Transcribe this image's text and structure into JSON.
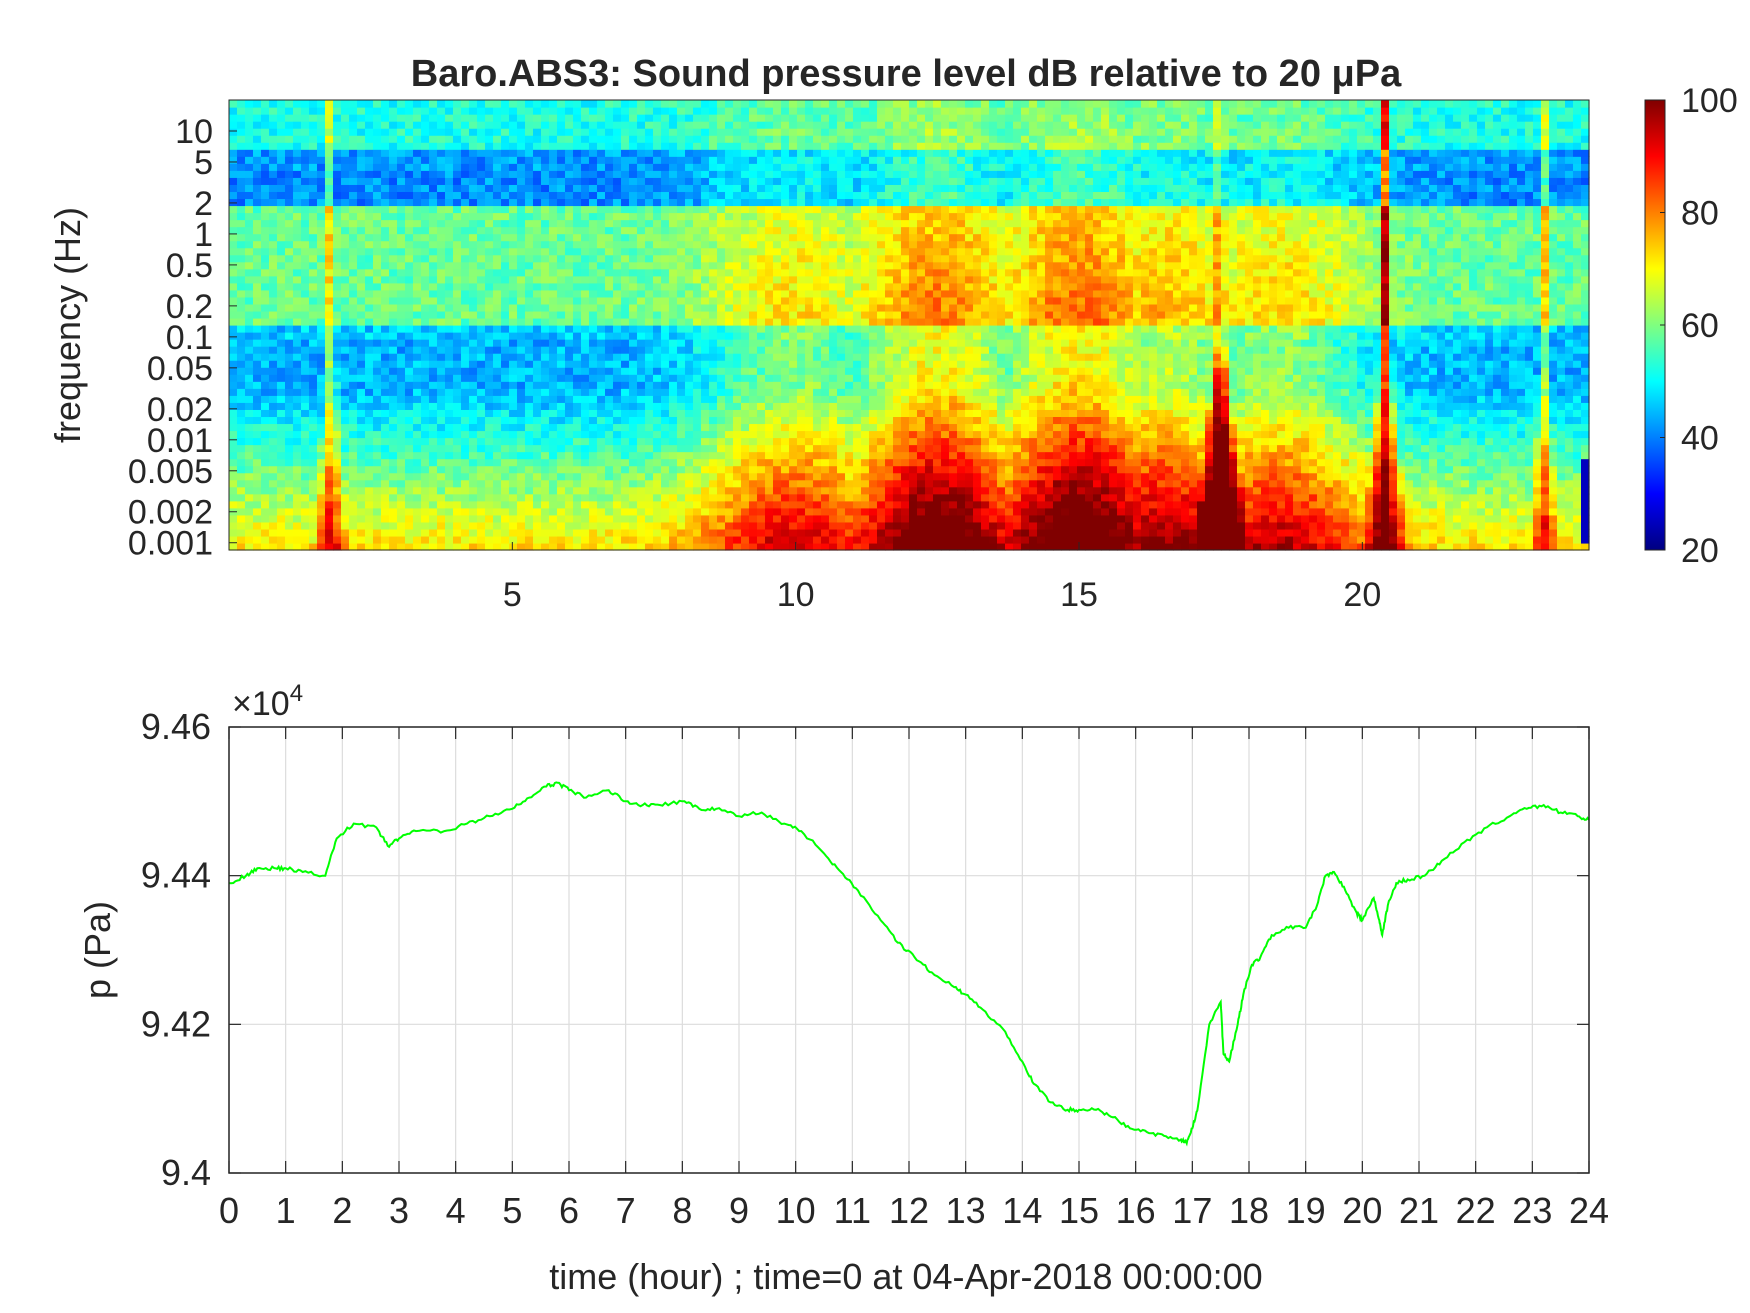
{
  "chart_data": [
    {
      "type": "heatmap",
      "title": "Baro.ABS3: Sound pressure level dB relative to 20 μPa",
      "ylabel": "frequency (Hz)",
      "xlabel": "",
      "xlim": [
        0,
        24
      ],
      "x_ticks": [
        5,
        10,
        15,
        20
      ],
      "x_tick_labels": [
        "5",
        "10",
        "15",
        "20"
      ],
      "ylim": [
        0.00085,
        20
      ],
      "yscale": "log",
      "y_ticks": [
        0.001,
        0.002,
        0.005,
        0.01,
        0.02,
        0.05,
        0.1,
        0.2,
        0.5,
        1,
        2,
        5,
        10
      ],
      "y_tick_labels": [
        "0.001",
        "0.002",
        "0.005",
        "0.01",
        "0.02",
        "0.05",
        "0.1",
        "0.2",
        "0.5",
        "1",
        "2",
        "5",
        "10"
      ],
      "colormap": "jet",
      "colorbar": {
        "range": [
          20,
          100
        ],
        "ticks": [
          20,
          40,
          60,
          80,
          100
        ],
        "tick_labels": [
          "20",
          "40",
          "60",
          "80",
          "100"
        ]
      },
      "events": [
        {
          "time": 1.8,
          "strength": 0.55,
          "note": "narrow transient"
        },
        {
          "time": 17.5,
          "strength": 1.0,
          "note": "strong broadband spike"
        },
        {
          "time": 20.4,
          "strength": 0.8,
          "note": "broadband spike"
        },
        {
          "time": 23.2,
          "strength": 0.5,
          "note": "narrow transient"
        }
      ],
      "broadband_activity": [
        [
          10,
          0.55
        ],
        [
          12.5,
          0.9
        ],
        [
          15,
          0.95
        ],
        [
          16.5,
          0.7
        ],
        [
          18.5,
          0.6
        ]
      ]
    },
    {
      "type": "line",
      "title": "",
      "xlabel": "time (hour) ; time=0 at 04-Apr-2018 00:00:00",
      "ylabel": "p (Pa)",
      "xlim": [
        0,
        24
      ],
      "x_ticks": [
        0,
        1,
        2,
        3,
        4,
        5,
        6,
        7,
        8,
        9,
        10,
        11,
        12,
        13,
        14,
        15,
        16,
        17,
        18,
        19,
        20,
        21,
        22,
        23,
        24
      ],
      "x_tick_labels": [
        "0",
        "1",
        "2",
        "3",
        "4",
        "5",
        "6",
        "7",
        "8",
        "9",
        "10",
        "11",
        "12",
        "13",
        "14",
        "15",
        "16",
        "17",
        "18",
        "19",
        "20",
        "21",
        "22",
        "23",
        "24"
      ],
      "ylim": [
        94000,
        94600
      ],
      "y_ticks": [
        94000,
        94200,
        94400,
        94600
      ],
      "y_tick_labels": [
        "9.4",
        "9.42",
        "9.44",
        "9.46"
      ],
      "exponent_label": "×10",
      "exponent_power": "4",
      "grid": true,
      "color": "#00ff00",
      "series": [
        {
          "x": [
            0,
            0.3,
            0.5,
            0.8,
            1.0,
            1.3,
            1.7,
            1.9,
            2.2,
            2.6,
            2.8,
            3.0,
            3.3,
            3.8,
            4.2,
            4.6,
            5.0,
            5.3,
            5.6,
            5.8,
            6.0,
            6.3,
            6.7,
            7.0,
            7.3,
            7.6,
            8.0,
            8.3,
            8.6,
            9.0,
            9.4,
            9.8,
            10.1,
            10.5,
            10.8,
            11.1,
            11.5,
            11.8,
            12.1,
            12.4,
            12.8,
            13.0,
            13.3,
            13.7,
            14.0,
            14.2,
            14.5,
            14.8,
            15.0,
            15.3,
            15.6,
            15.9,
            16.2,
            16.5,
            16.8,
            16.9,
            17.0,
            17.1,
            17.3,
            17.5,
            17.55,
            17.65,
            17.8,
            17.9,
            18.05,
            18.2,
            18.4,
            18.7,
            19.0,
            19.2,
            19.35,
            19.5,
            19.7,
            19.9,
            20.0,
            20.2,
            20.3,
            20.35,
            20.45,
            20.6,
            20.8,
            21.1,
            21.4,
            21.8,
            22.2,
            22.6,
            22.9,
            23.2,
            23.5,
            23.8,
            24.0
          ],
          "y": [
            94390,
            94400,
            94410,
            94410,
            94410,
            94405,
            94400,
            94450,
            94470,
            94465,
            94440,
            94450,
            94460,
            94460,
            94470,
            94480,
            94490,
            94505,
            94520,
            94525,
            94515,
            94505,
            94515,
            94500,
            94495,
            94495,
            94500,
            94490,
            94490,
            94480,
            94485,
            94470,
            94460,
            94430,
            94405,
            94380,
            94340,
            94310,
            94290,
            94270,
            94250,
            94240,
            94220,
            94190,
            94150,
            94120,
            94095,
            94085,
            94085,
            94085,
            94075,
            94060,
            94055,
            94050,
            94045,
            94040,
            94060,
            94090,
            94200,
            94230,
            94160,
            94150,
            94200,
            94240,
            94280,
            94290,
            94320,
            94330,
            94330,
            94360,
            94400,
            94405,
            94380,
            94350,
            94340,
            94370,
            94340,
            94320,
            94360,
            94390,
            94395,
            94400,
            94420,
            94445,
            94465,
            94480,
            94490,
            94495,
            94485,
            94480,
            94475
          ]
        }
      ]
    }
  ]
}
